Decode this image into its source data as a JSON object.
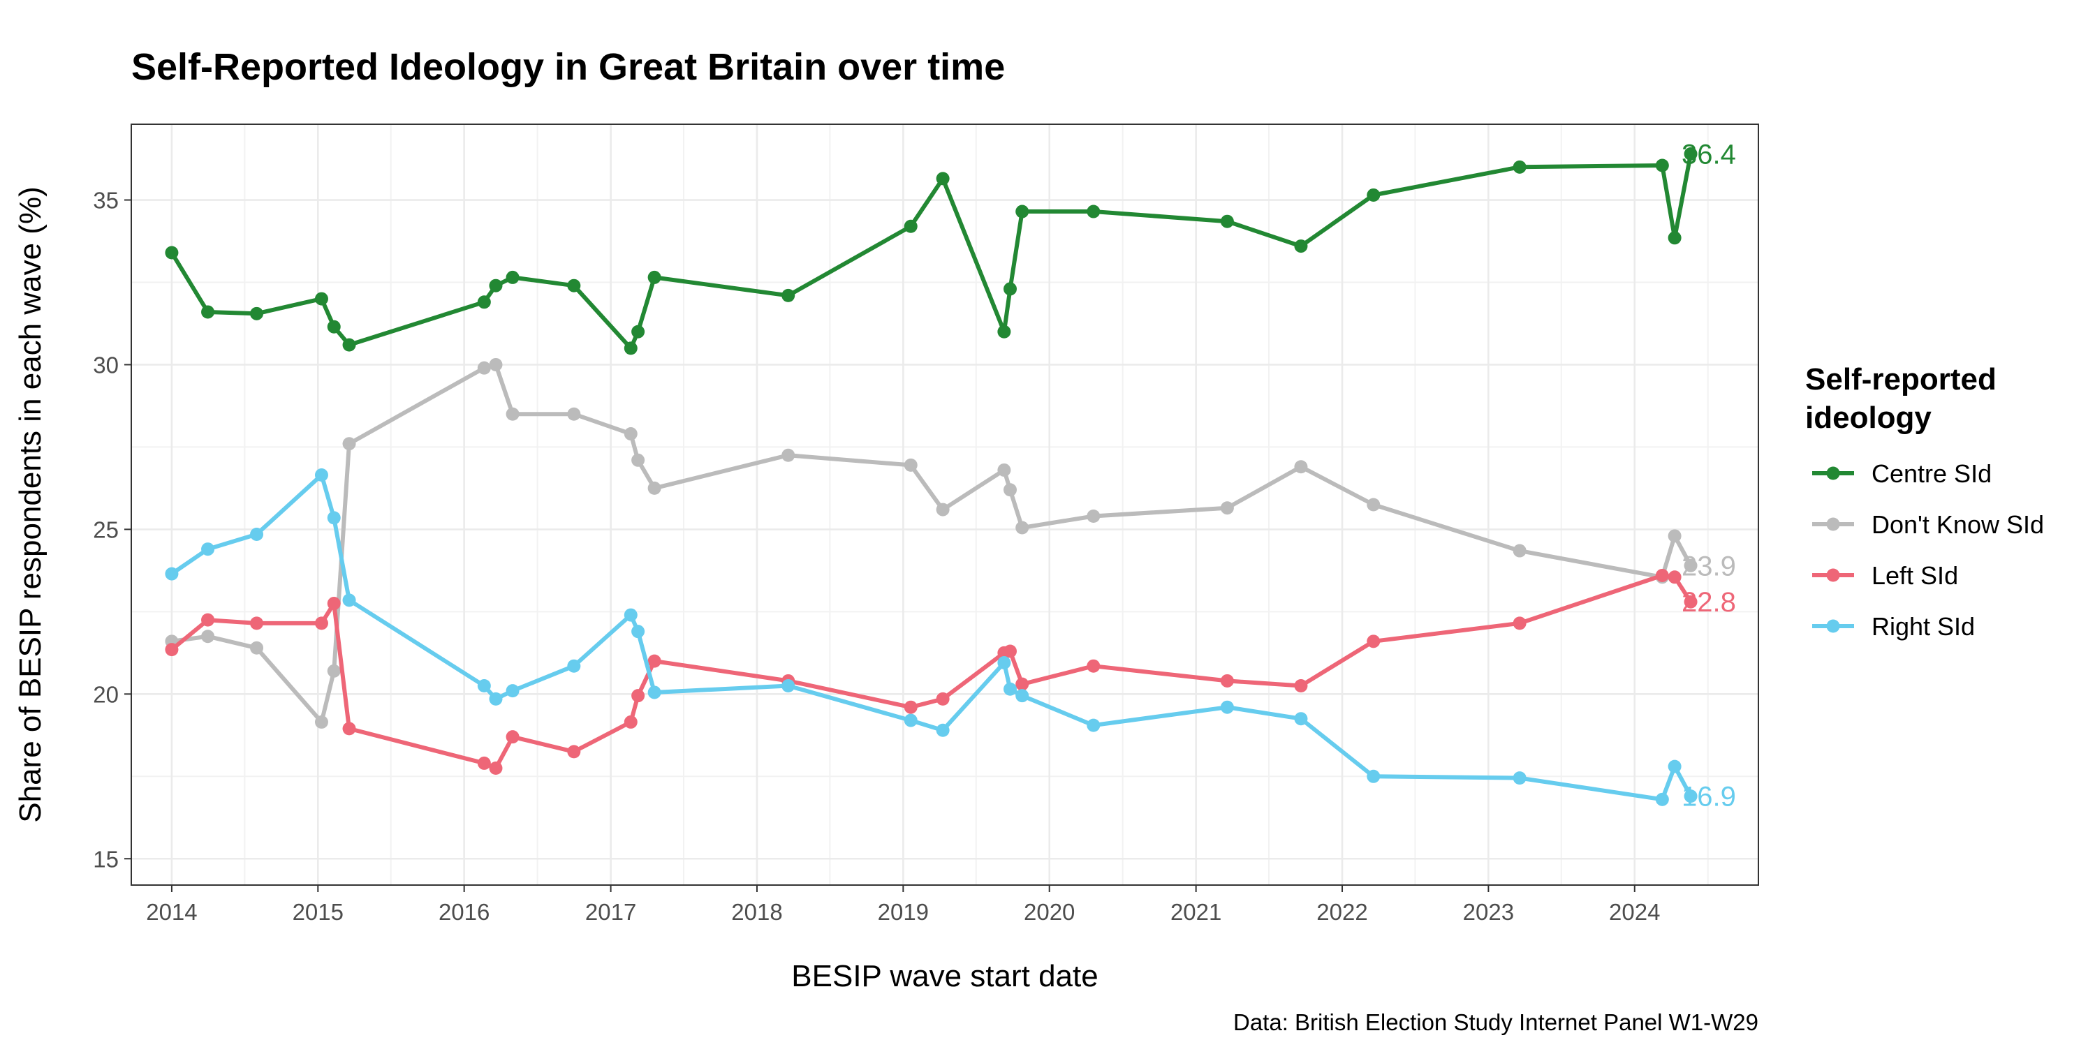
{
  "chart_data": {
    "type": "line",
    "title": "Self-Reported Ideology in Great Britain over time",
    "xlabel": "BESIP wave start date",
    "ylabel": "Share of BESIP respondents in each wave (%)",
    "caption": "Data: British Election Study Internet Panel W1-W29",
    "xlim": [
      "2013-09-22",
      "2024-11-05"
    ],
    "ylim": [
      14.2,
      37.3
    ],
    "x_ticks": [
      "2014",
      "2015",
      "2016",
      "2017",
      "2018",
      "2019",
      "2020",
      "2021",
      "2022",
      "2023",
      "2024"
    ],
    "y_ticks": [
      15,
      20,
      25,
      30,
      35
    ],
    "grid": true,
    "legend": {
      "title_lines": [
        "Self-reported",
        "ideology"
      ],
      "position": "right"
    },
    "series": [
      {
        "name": "Centre SId",
        "color": "#228833",
        "end_label": "36.4",
        "points": [
          [
            "2014-01-01",
            33.4
          ],
          [
            "2014-04-01",
            31.6
          ],
          [
            "2014-08-01",
            31.55
          ],
          [
            "2015-01-10",
            32.0
          ],
          [
            "2015-02-10",
            31.15
          ],
          [
            "2015-03-20",
            30.6
          ],
          [
            "2016-02-20",
            31.9
          ],
          [
            "2016-03-20",
            32.4
          ],
          [
            "2016-05-01",
            32.65
          ],
          [
            "2016-10-01",
            32.4
          ],
          [
            "2017-02-20",
            30.5
          ],
          [
            "2017-03-10",
            31.0
          ],
          [
            "2017-04-20",
            32.65
          ],
          [
            "2018-03-20",
            32.1
          ],
          [
            "2019-01-20",
            34.2
          ],
          [
            "2019-04-10",
            35.65
          ],
          [
            "2019-09-10",
            31.0
          ],
          [
            "2019-09-25",
            32.3
          ],
          [
            "2019-10-25",
            34.65
          ],
          [
            "2020-04-20",
            34.65
          ],
          [
            "2021-03-20",
            34.35
          ],
          [
            "2021-09-20",
            33.6
          ],
          [
            "2022-03-20",
            35.15
          ],
          [
            "2023-03-20",
            36.0
          ],
          [
            "2024-03-10",
            36.05
          ],
          [
            "2024-04-10",
            33.85
          ],
          [
            "2024-05-20",
            36.4
          ]
        ]
      },
      {
        "name": "Don't Know SId",
        "color": "#bbbbbb",
        "end_label": "23.9",
        "points": [
          [
            "2014-01-01",
            21.6
          ],
          [
            "2014-04-01",
            21.75
          ],
          [
            "2014-08-01",
            21.4
          ],
          [
            "2015-01-10",
            19.15
          ],
          [
            "2015-02-10",
            20.7
          ],
          [
            "2015-03-20",
            27.6
          ],
          [
            "2016-02-20",
            29.9
          ],
          [
            "2016-03-20",
            30.0
          ],
          [
            "2016-05-01",
            28.5
          ],
          [
            "2016-10-01",
            28.5
          ],
          [
            "2017-02-20",
            27.9
          ],
          [
            "2017-03-10",
            27.1
          ],
          [
            "2017-04-20",
            26.25
          ],
          [
            "2018-03-20",
            27.25
          ],
          [
            "2019-01-20",
            26.95
          ],
          [
            "2019-04-10",
            25.6
          ],
          [
            "2019-09-10",
            26.8
          ],
          [
            "2019-09-25",
            26.2
          ],
          [
            "2019-10-25",
            25.05
          ],
          [
            "2020-04-20",
            25.4
          ],
          [
            "2021-03-20",
            25.65
          ],
          [
            "2021-09-20",
            26.9
          ],
          [
            "2022-03-20",
            25.75
          ],
          [
            "2023-03-20",
            24.35
          ],
          [
            "2024-03-10",
            23.55
          ],
          [
            "2024-04-10",
            24.8
          ],
          [
            "2024-05-20",
            23.9
          ]
        ]
      },
      {
        "name": "Left SId",
        "color": "#ee6677",
        "end_label": "22.8",
        "points": [
          [
            "2014-01-01",
            21.35
          ],
          [
            "2014-04-01",
            22.25
          ],
          [
            "2014-08-01",
            22.15
          ],
          [
            "2015-01-10",
            22.15
          ],
          [
            "2015-02-10",
            22.75
          ],
          [
            "2015-03-20",
            18.95
          ],
          [
            "2016-02-20",
            17.9
          ],
          [
            "2016-03-20",
            17.75
          ],
          [
            "2016-05-01",
            18.7
          ],
          [
            "2016-10-01",
            18.25
          ],
          [
            "2017-02-20",
            19.15
          ],
          [
            "2017-03-10",
            19.95
          ],
          [
            "2017-04-20",
            21.0
          ],
          [
            "2018-03-20",
            20.4
          ],
          [
            "2019-01-20",
            19.6
          ],
          [
            "2019-04-10",
            19.85
          ],
          [
            "2019-09-10",
            21.25
          ],
          [
            "2019-09-25",
            21.3
          ],
          [
            "2019-10-25",
            20.3
          ],
          [
            "2020-04-20",
            20.85
          ],
          [
            "2021-03-20",
            20.4
          ],
          [
            "2021-09-20",
            20.25
          ],
          [
            "2022-03-20",
            21.6
          ],
          [
            "2023-03-20",
            22.15
          ],
          [
            "2024-03-10",
            23.6
          ],
          [
            "2024-04-10",
            23.55
          ],
          [
            "2024-05-20",
            22.8
          ]
        ]
      },
      {
        "name": "Right SId",
        "color": "#66ccee",
        "end_label": "16.9",
        "points": [
          [
            "2014-01-01",
            23.65
          ],
          [
            "2014-04-01",
            24.4
          ],
          [
            "2014-08-01",
            24.85
          ],
          [
            "2015-01-10",
            26.65
          ],
          [
            "2015-02-10",
            25.35
          ],
          [
            "2015-03-20",
            22.85
          ],
          [
            "2016-02-20",
            20.25
          ],
          [
            "2016-03-20",
            19.85
          ],
          [
            "2016-05-01",
            20.1
          ],
          [
            "2016-10-01",
            20.85
          ],
          [
            "2017-02-20",
            22.4
          ],
          [
            "2017-03-10",
            21.9
          ],
          [
            "2017-04-20",
            20.05
          ],
          [
            "2018-03-20",
            20.25
          ],
          [
            "2019-01-20",
            19.2
          ],
          [
            "2019-04-10",
            18.9
          ],
          [
            "2019-09-10",
            20.95
          ],
          [
            "2019-09-25",
            20.15
          ],
          [
            "2019-10-25",
            19.95
          ],
          [
            "2020-04-20",
            19.05
          ],
          [
            "2021-03-20",
            19.6
          ],
          [
            "2021-09-20",
            19.25
          ],
          [
            "2022-03-20",
            17.5
          ],
          [
            "2023-03-20",
            17.45
          ],
          [
            "2024-03-10",
            16.8
          ],
          [
            "2024-04-10",
            17.8
          ],
          [
            "2024-05-20",
            16.9
          ]
        ]
      }
    ]
  }
}
